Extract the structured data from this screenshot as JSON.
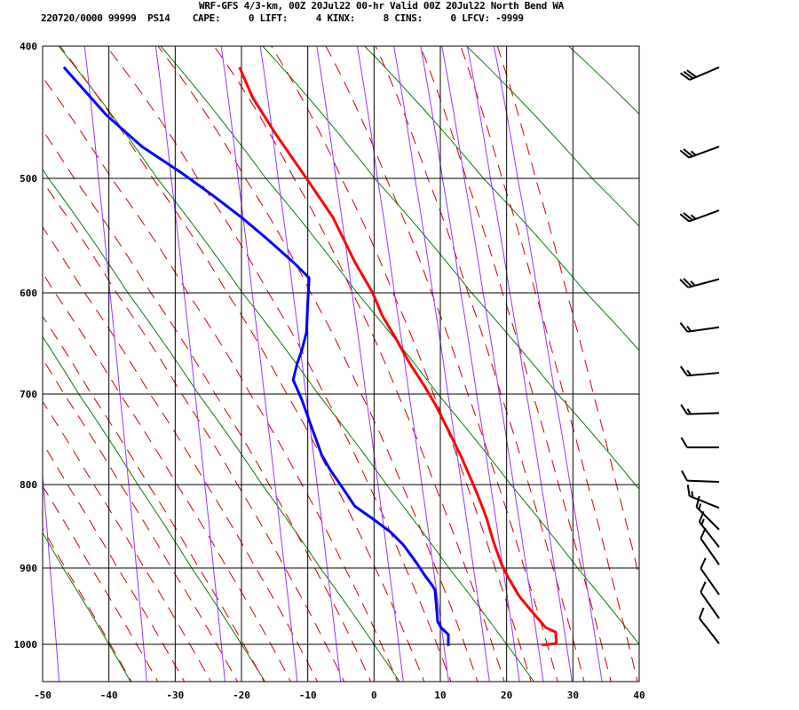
{
  "header": {
    "line1": "WRF-GFS 4/3-km, 00Z 20Jul22 00-hr Valid 00Z 20Jul22 North Bend WA",
    "line2": "220720/0000 99999  PS14    CAPE:     0 LIFT:     4 KINX:     8 CINS:     0 LFCV: -9999"
  },
  "colors": {
    "temperature": "#ff0000",
    "dewpoint": "#0000ff",
    "dry_adiabat": "#008000",
    "moist_adiabat": "#cc0000",
    "mixing_ratio": "#9933ff",
    "grid": "#000000"
  },
  "chart_data": {
    "type": "line",
    "subtype": "skew-t sounding",
    "title": "WRF-GFS 4/3-km, 00Z 20Jul22 00-hr Valid 00Z 20Jul22 North Bend WA",
    "x_ticks": [
      "-50",
      "-40",
      "-30",
      "-20",
      "-10",
      "0",
      "10",
      "20",
      "30",
      "40"
    ],
    "y_ticks": [
      "400",
      "500",
      "600",
      "700",
      "800",
      "900",
      "1000"
    ],
    "xlim": [
      -50,
      40
    ],
    "ylim": [
      1050,
      400
    ],
    "y_scale": "pressure",
    "grid": true,
    "series": [
      {
        "role": "temperature",
        "points": [
          [
            1001,
            25.3
          ],
          [
            999,
            27.5
          ],
          [
            984,
            27.4
          ],
          [
            978,
            25.9
          ],
          [
            958,
            23.9
          ],
          [
            937,
            21.9
          ],
          [
            912,
            20.2
          ],
          [
            895,
            19.2
          ],
          [
            868,
            18.0
          ],
          [
            841,
            17.0
          ],
          [
            826,
            16.3
          ],
          [
            804,
            15.2
          ],
          [
            770,
            13.2
          ],
          [
            740,
            11.2
          ],
          [
            711,
            9.2
          ],
          [
            692,
            7.6
          ],
          [
            670,
            5.4
          ],
          [
            644,
            3.2
          ],
          [
            622,
            1.2
          ],
          [
            600,
            -0.2
          ],
          [
            573,
            -2.9
          ],
          [
            534,
            -6.2
          ],
          [
            500,
            -10.2
          ],
          [
            466,
            -14.9
          ],
          [
            439,
            -18.3
          ],
          [
            416,
            -20.3
          ]
        ]
      },
      {
        "role": "dewpoint",
        "points": [
          [
            1002,
            11.2
          ],
          [
            987,
            11.2
          ],
          [
            978,
            10.1
          ],
          [
            970,
            9.6
          ],
          [
            929,
            9.2
          ],
          [
            923,
            8.8
          ],
          [
            909,
            7.6
          ],
          [
            895,
            6.5
          ],
          [
            873,
            4.5
          ],
          [
            857,
            2.5
          ],
          [
            841,
            -0.2
          ],
          [
            826,
            -2.9
          ],
          [
            802,
            -4.9
          ],
          [
            784,
            -6.6
          ],
          [
            767,
            -7.9
          ],
          [
            733,
            -9.6
          ],
          [
            706,
            -10.9
          ],
          [
            686,
            -12.2
          ],
          [
            670,
            -11.6
          ],
          [
            657,
            -10.9
          ],
          [
            639,
            -10.2
          ],
          [
            609,
            -10.0
          ],
          [
            587,
            -9.8
          ],
          [
            573,
            -12.2
          ],
          [
            552,
            -16.3
          ],
          [
            534,
            -20.0
          ],
          [
            515,
            -24.3
          ],
          [
            496,
            -29.0
          ],
          [
            476,
            -35.0
          ],
          [
            452,
            -40.4
          ],
          [
            416,
            -46.8
          ]
        ]
      }
    ],
    "wind_barbs": [
      {
        "p": 416,
        "dir": 247,
        "speed_kt": 30
      },
      {
        "p": 476,
        "dir": 250,
        "speed_kt": 25
      },
      {
        "p": 528,
        "dir": 250,
        "speed_kt": 25
      },
      {
        "p": 588,
        "dir": 255,
        "speed_kt": 25
      },
      {
        "p": 634,
        "dir": 262,
        "speed_kt": 15
      },
      {
        "p": 679,
        "dir": 265,
        "speed_kt": 15
      },
      {
        "p": 721,
        "dir": 268,
        "speed_kt": 15
      },
      {
        "p": 759,
        "dir": 270,
        "speed_kt": 10
      },
      {
        "p": 797,
        "dir": 272,
        "speed_kt": 10
      },
      {
        "p": 828,
        "dir": 292,
        "speed_kt": 15
      },
      {
        "p": 854,
        "dir": 315,
        "speed_kt": 15
      },
      {
        "p": 875,
        "dir": 322,
        "speed_kt": 15
      },
      {
        "p": 896,
        "dir": 325,
        "speed_kt": 10
      },
      {
        "p": 935,
        "dir": 325,
        "speed_kt": 10
      },
      {
        "p": 966,
        "dir": 325,
        "speed_kt": 10
      },
      {
        "p": 999,
        "dir": 322,
        "speed_kt": 10
      }
    ]
  }
}
